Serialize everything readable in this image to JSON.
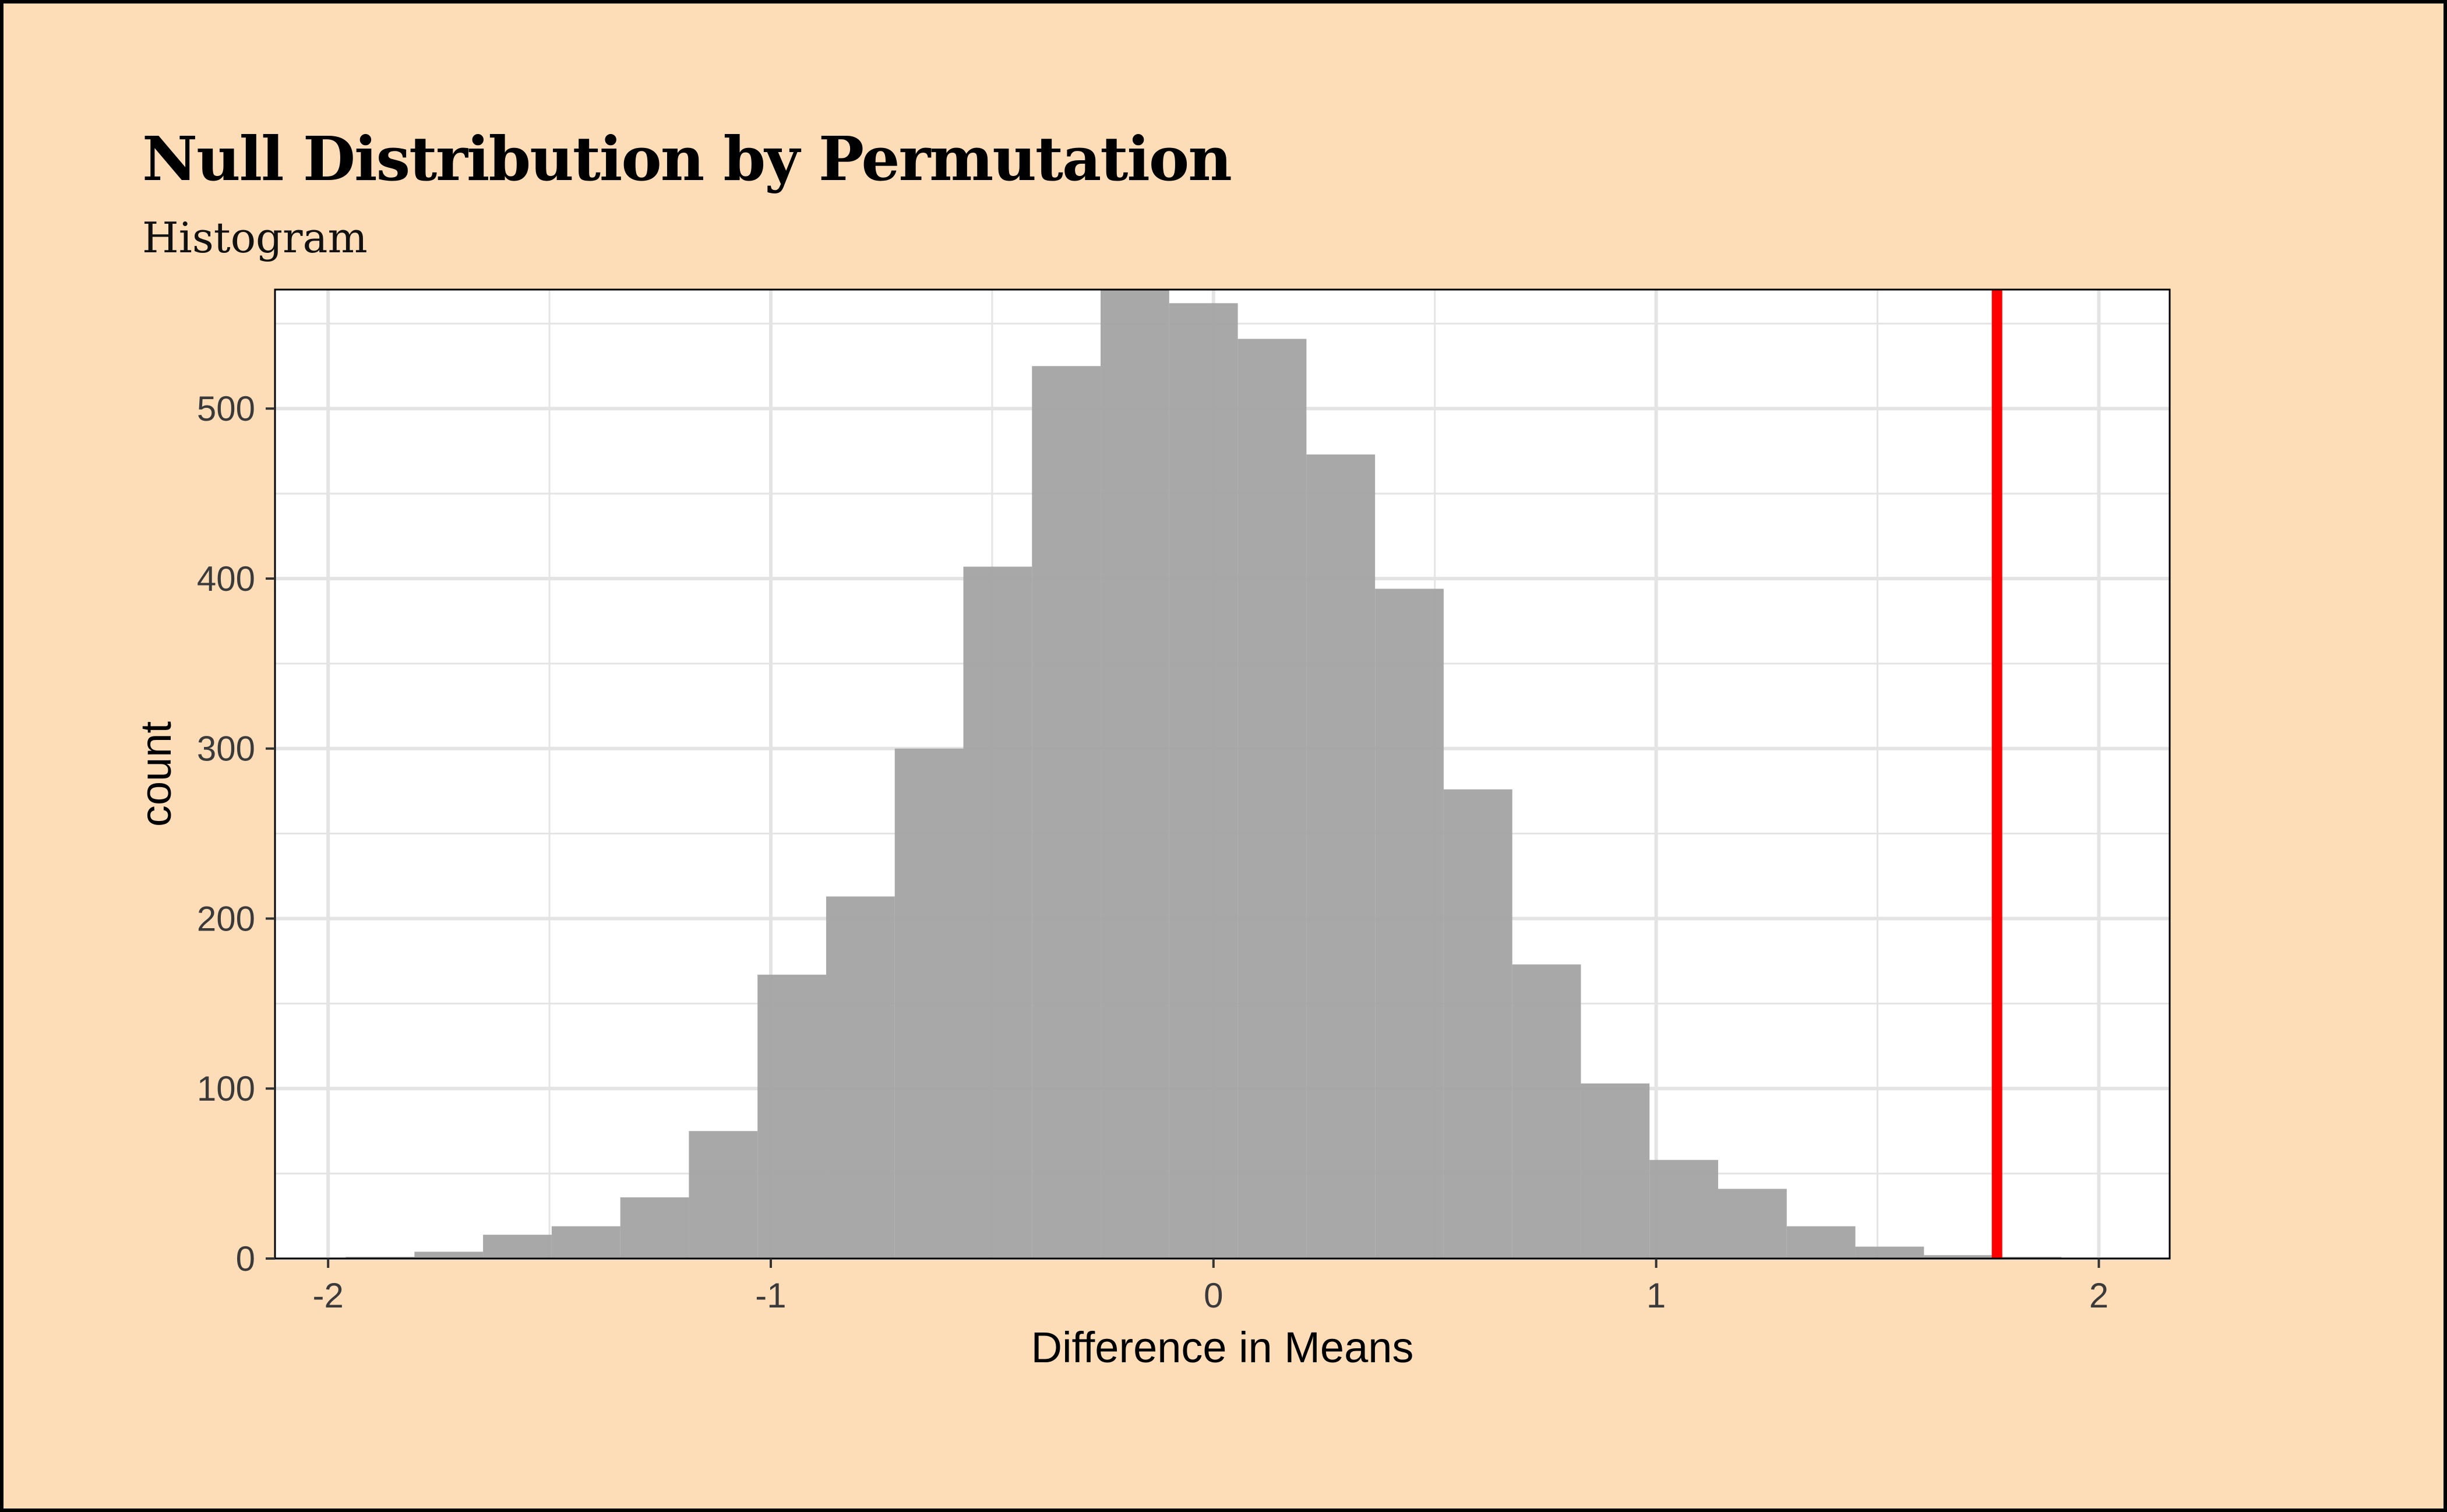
{
  "chart_data": {
    "type": "histogram",
    "title": "Null Distribution by Permutation",
    "subtitle": "Histogram",
    "xlabel": "Difference in Means",
    "ylabel": "count",
    "xlim": [
      -2.12,
      2.16
    ],
    "ylim": [
      0,
      570
    ],
    "x_ticks": [
      -2,
      -1,
      0,
      1,
      2
    ],
    "x_tick_labels": [
      "-2",
      "-1",
      "0",
      "1",
      "2"
    ],
    "y_ticks": [
      0,
      100,
      200,
      300,
      400,
      500
    ],
    "y_tick_labels": [
      "0",
      "100",
      "200",
      "300",
      "400",
      "500"
    ],
    "grid": true,
    "bins": [
      {
        "x0": -1.96,
        "x1": -1.805,
        "count": 1
      },
      {
        "x0": -1.805,
        "x1": -1.65,
        "count": 4
      },
      {
        "x0": -1.65,
        "x1": -1.495,
        "count": 14
      },
      {
        "x0": -1.495,
        "x1": -1.34,
        "count": 19
      },
      {
        "x0": -1.34,
        "x1": -1.185,
        "count": 36
      },
      {
        "x0": -1.185,
        "x1": -1.03,
        "count": 75
      },
      {
        "x0": -1.03,
        "x1": -0.875,
        "count": 167
      },
      {
        "x0": -0.875,
        "x1": -0.72,
        "count": 213
      },
      {
        "x0": -0.72,
        "x1": -0.565,
        "count": 300
      },
      {
        "x0": -0.565,
        "x1": -0.41,
        "count": 407
      },
      {
        "x0": -0.41,
        "x1": -0.255,
        "count": 525
      },
      {
        "x0": -0.255,
        "x1": -0.1,
        "count": 570
      },
      {
        "x0": -0.1,
        "x1": 0.055,
        "count": 562
      },
      {
        "x0": 0.055,
        "x1": 0.21,
        "count": 541
      },
      {
        "x0": 0.21,
        "x1": 0.365,
        "count": 473
      },
      {
        "x0": 0.365,
        "x1": 0.52,
        "count": 394
      },
      {
        "x0": 0.52,
        "x1": 0.675,
        "count": 276
      },
      {
        "x0": 0.675,
        "x1": 0.83,
        "count": 173
      },
      {
        "x0": 0.83,
        "x1": 0.985,
        "count": 103
      },
      {
        "x0": 0.985,
        "x1": 1.14,
        "count": 58
      },
      {
        "x0": 1.14,
        "x1": 1.295,
        "count": 41
      },
      {
        "x0": 1.295,
        "x1": 1.45,
        "count": 19
      },
      {
        "x0": 1.45,
        "x1": 1.605,
        "count": 7
      },
      {
        "x0": 1.605,
        "x1": 1.76,
        "count": 2
      },
      {
        "x0": 1.76,
        "x1": 1.915,
        "count": 1
      }
    ],
    "observed_value": 1.77,
    "colors": {
      "background": "#fddcb8",
      "panel": "#ffffff",
      "bars": "#a3a3a3",
      "observed_line": "#ff0000",
      "grid": "#e4e4e4"
    }
  }
}
